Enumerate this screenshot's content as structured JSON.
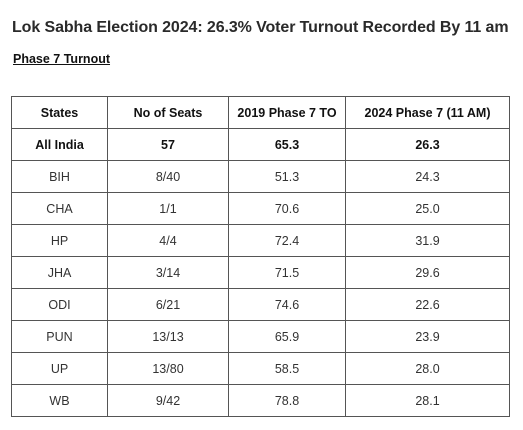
{
  "headline": "Lok Sabha Election 2024: 26.3% Voter Turnout Recorded By 11 am",
  "subhead": "Phase 7 Turnout",
  "table": {
    "headers": [
      "States",
      "No of Seats",
      "2019 Phase 7 TO",
      "2024 Phase 7 (11 AM)"
    ],
    "rows": [
      [
        "All India",
        "57",
        "65.3",
        "26.3"
      ],
      [
        "BIH",
        "8/40",
        "51.3",
        "24.3"
      ],
      [
        "CHA",
        "1/1",
        "70.6",
        "25.0"
      ],
      [
        "HP",
        "4/4",
        "72.4",
        "31.9"
      ],
      [
        "JHA",
        "3/14",
        "71.5",
        "29.6"
      ],
      [
        "ODI",
        "6/21",
        "74.6",
        "22.6"
      ],
      [
        "PUN",
        "13/13",
        "65.9",
        "23.9"
      ],
      [
        "UP",
        "13/80",
        "58.5",
        "28.0"
      ],
      [
        "WB",
        "9/42",
        "78.8",
        "28.1"
      ]
    ]
  }
}
